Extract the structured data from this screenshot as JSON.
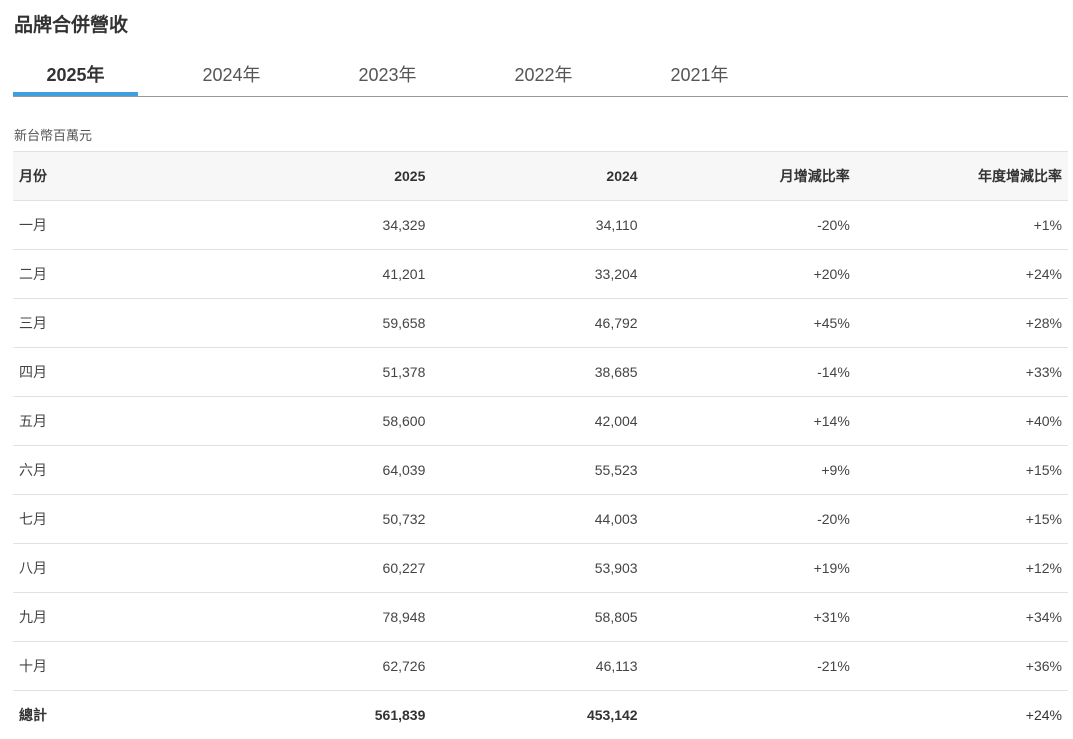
{
  "title": "品牌合併營收",
  "tabs": [
    "2025年",
    "2024年",
    "2023年",
    "2022年",
    "2021年"
  ],
  "active_tab": 0,
  "unit": "新台幣百萬元",
  "table": {
    "headers": [
      "月份",
      "2025",
      "2024",
      "月增減比率",
      "年度增減比率"
    ],
    "rows": [
      [
        "一月",
        "34,329",
        "34,110",
        "-20%",
        "+1%"
      ],
      [
        "二月",
        "41,201",
        "33,204",
        "+20%",
        "+24%"
      ],
      [
        "三月",
        "59,658",
        "46,792",
        "+45%",
        "+28%"
      ],
      [
        "四月",
        "51,378",
        "38,685",
        "-14%",
        "+33%"
      ],
      [
        "五月",
        "58,600",
        "42,004",
        "+14%",
        "+40%"
      ],
      [
        "六月",
        "64,039",
        "55,523",
        "+9%",
        "+15%"
      ],
      [
        "七月",
        "50,732",
        "44,003",
        "-20%",
        "+15%"
      ],
      [
        "八月",
        "60,227",
        "53,903",
        "+19%",
        "+12%"
      ],
      [
        "九月",
        "78,948",
        "58,805",
        "+31%",
        "+34%"
      ],
      [
        "十月",
        "62,726",
        "46,113",
        "-21%",
        "+36%"
      ]
    ],
    "total": [
      "總計",
      "561,839",
      "453,142",
      "",
      "+24%"
    ]
  },
  "colors": {
    "accent": "#3fa0e0"
  }
}
